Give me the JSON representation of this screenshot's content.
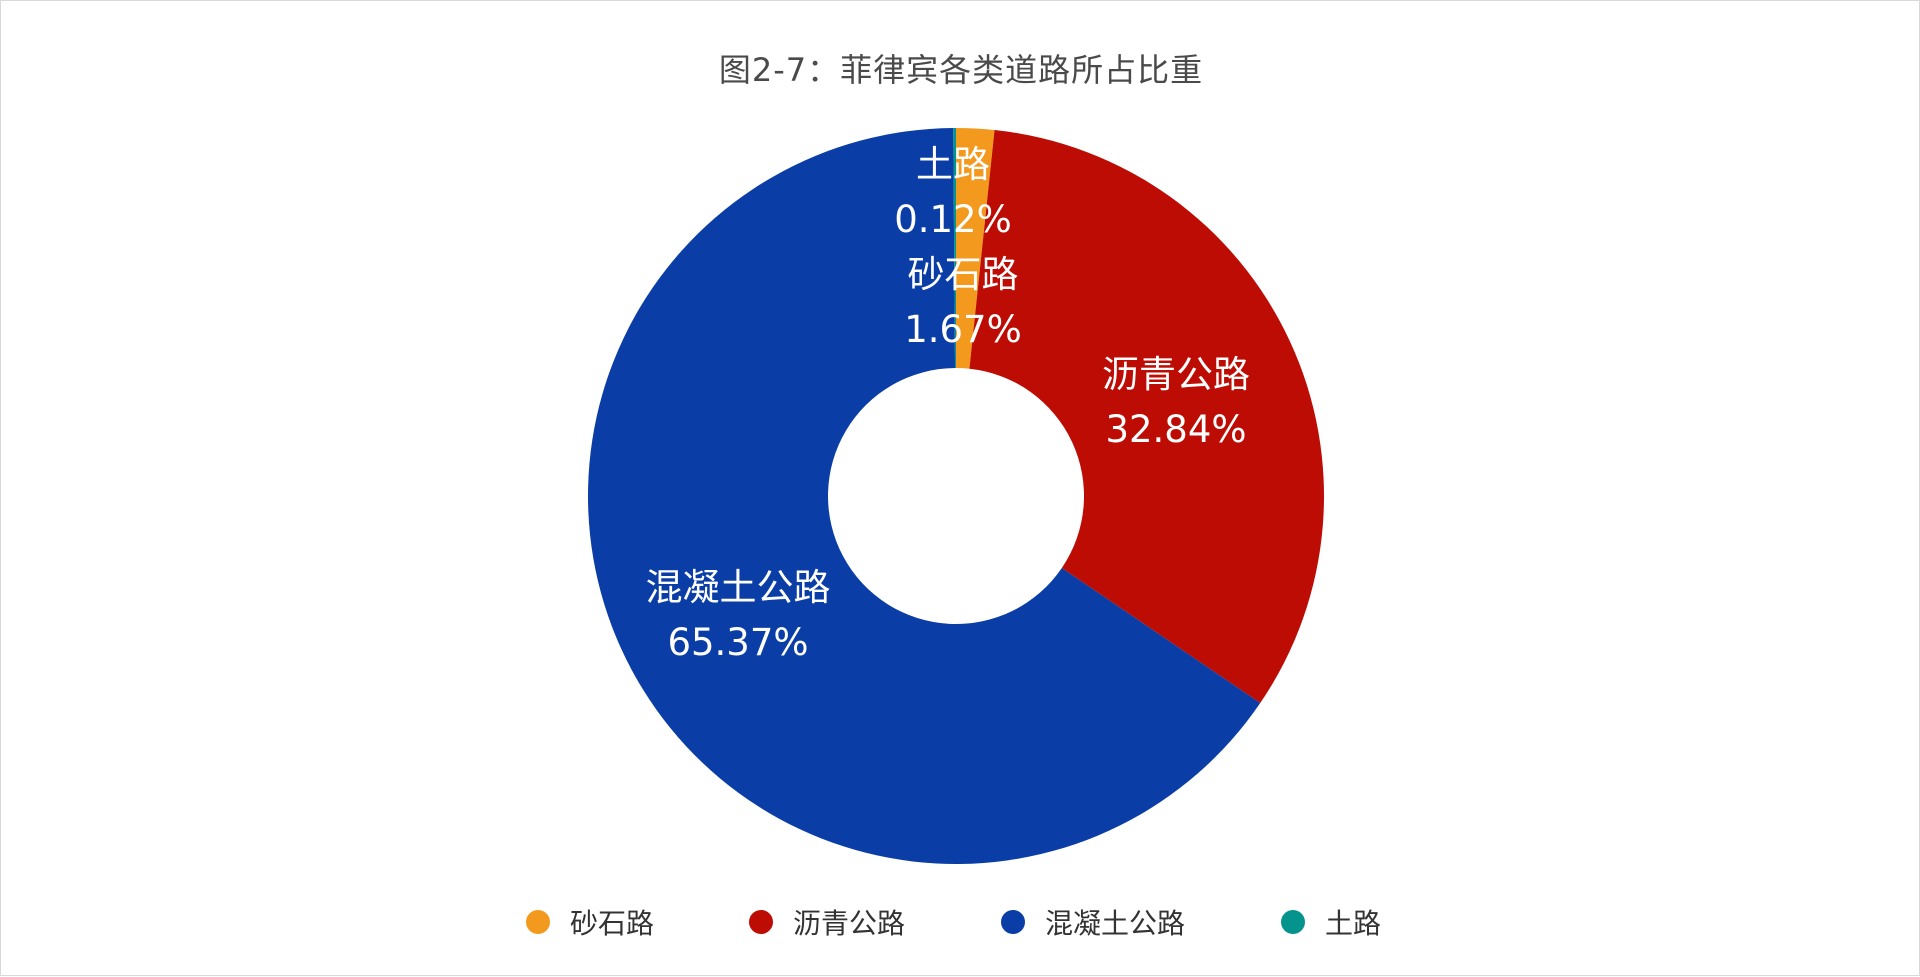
{
  "chart_data": {
    "type": "pie",
    "subtype": "donut",
    "title": "图2-7：菲律宾各类道路所占比重",
    "categories": [
      "砂石路",
      "沥青公路",
      "混凝土公路",
      "土路"
    ],
    "values": [
      1.67,
      32.84,
      65.37,
      0.12
    ],
    "value_labels": [
      "1.67%",
      "32.84%",
      "65.37%",
      "0.12%"
    ],
    "colors": [
      "#f39a1e",
      "#bd0c04",
      "#0a3ea6",
      "#05938e"
    ],
    "legend_position": "bottom",
    "legend": [
      "砂石路",
      "沥青公路",
      "混凝土公路",
      "土路"
    ]
  }
}
